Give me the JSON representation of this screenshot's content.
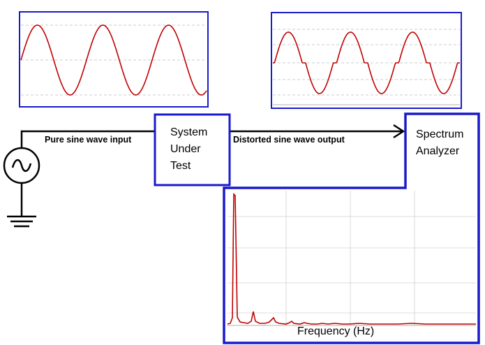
{
  "labels": {
    "input": "Pure sine wave input",
    "output": "Distorted sine wave output",
    "sut": [
      "System",
      "Under",
      "Test"
    ],
    "analyzer": [
      "Spectrum",
      "Analyzer"
    ],
    "frequency_axis": "Frequency (Hz)"
  },
  "colors": {
    "frame": "#1a1acc",
    "signal": "#c00000",
    "grid": "#bbbbbb",
    "wire": "#000000"
  },
  "icons": {
    "source": "ac-source-icon",
    "ground": "ground-icon",
    "arrow": "arrowhead-icon"
  }
}
